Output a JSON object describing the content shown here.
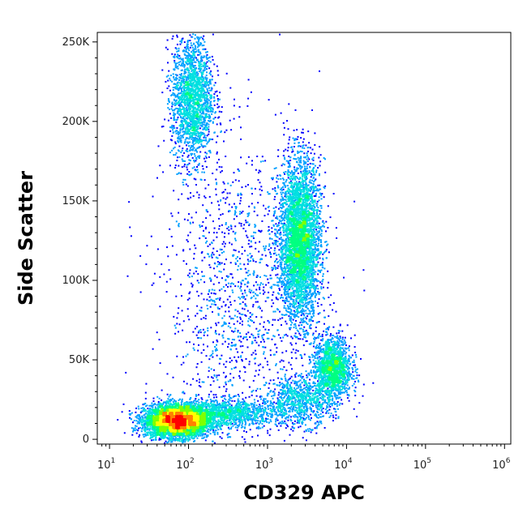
{
  "chart_data": {
    "type": "scatter",
    "subtype": "flow-cytometry-density-dot-plot",
    "xlabel": "CD329 APC",
    "ylabel": "Side Scatter",
    "x_scale": "log",
    "xlim": [
      7,
      1200000
    ],
    "ylim": [
      -3000,
      256000
    ],
    "x_ticks": [
      {
        "value": 10,
        "base": "10",
        "exp": "1"
      },
      {
        "value": 100,
        "base": "10",
        "exp": "2"
      },
      {
        "value": 1000,
        "base": "10",
        "exp": "3"
      },
      {
        "value": 10000,
        "base": "10",
        "exp": "4"
      },
      {
        "value": 100000,
        "base": "10",
        "exp": "5"
      },
      {
        "value": 1000000,
        "base": "10",
        "exp": "6"
      }
    ],
    "y_ticks": [
      {
        "value": 0,
        "label": "0"
      },
      {
        "value": 50000,
        "label": "50K"
      },
      {
        "value": 100000,
        "label": "100K"
      },
      {
        "value": 150000,
        "label": "150K"
      },
      {
        "value": 200000,
        "label": "200K"
      },
      {
        "value": 250000,
        "label": "250K"
      }
    ],
    "populations": [
      {
        "x_center": 70,
        "y_center": 12000,
        "log_sd_x": 0.2,
        "sd_y": 5000,
        "weight": 0.3
      },
      {
        "x_center": 300,
        "y_center": 17000,
        "log_sd_x": 0.35,
        "sd_y": 4500,
        "weight": 0.07
      },
      {
        "x_center": 110,
        "y_center": 215000,
        "log_sd_x": 0.13,
        "sd_y": 20000,
        "weight": 0.12
      },
      {
        "x_center": 2500,
        "y_center": 125000,
        "log_sd_x": 0.13,
        "sd_y": 25000,
        "weight": 0.25
      },
      {
        "x_center": 6500,
        "y_center": 45000,
        "log_sd_x": 0.12,
        "sd_y": 10000,
        "weight": 0.1
      },
      {
        "x_center": 2500,
        "y_center": 25000,
        "log_sd_x": 0.2,
        "sd_y": 8000,
        "weight": 0.05
      },
      {
        "x_center": 400,
        "y_center": 90000,
        "log_sd_x": 0.45,
        "sd_y": 50000,
        "weight": 0.08
      }
    ],
    "grid": false,
    "legend": "none",
    "colormap": [
      "#0000ff",
      "#00a0ff",
      "#00e0e0",
      "#00ff80",
      "#80ff00",
      "#ffff00",
      "#ff8000",
      "#ff0000"
    ]
  }
}
